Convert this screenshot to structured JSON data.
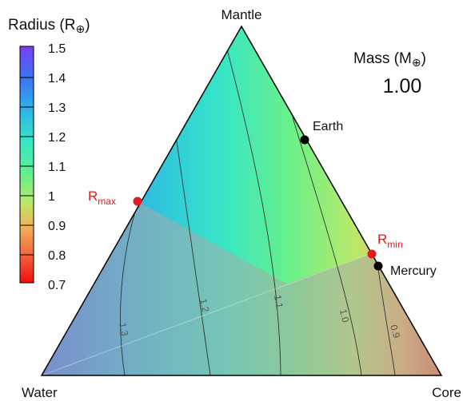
{
  "chart_data": {
    "type": "ternary",
    "vertices": {
      "top": "Mantle",
      "left": "Water",
      "right": "Core"
    },
    "colorbar": {
      "title": "Radius (R",
      "title_symbol": "⊕",
      "title_close": ")",
      "ticks": [
        "1.5",
        "1.4",
        "1.3",
        "1.2",
        "1.1",
        "1",
        "0.9",
        "0.8",
        "0.7"
      ],
      "range": [
        0.7,
        1.5
      ],
      "colors": [
        "#7b3ff2",
        "#3f6ef5",
        "#2fb4e8",
        "#36e6c6",
        "#68f08a",
        "#b9ea6a",
        "#f2b45a",
        "#f3673e",
        "#f00e10"
      ]
    },
    "mass": {
      "label": "Mass (M",
      "label_symbol": "⊕",
      "label_close": ")",
      "value": "1.00"
    },
    "contours": [
      "1.3",
      "1.2",
      "1.1",
      "1.0",
      "0.9"
    ],
    "points": {
      "earth": {
        "label": "Earth",
        "color": "#000000"
      },
      "mercury": {
        "label": "Mercury",
        "color": "#000000"
      },
      "rmax": {
        "label": "R",
        "sub": "max",
        "color": "#e41a1c"
      },
      "rmin": {
        "label": "R",
        "sub": "min",
        "color": "#e41a1c"
      }
    },
    "shaded_region_color": "#a9a9a9"
  }
}
